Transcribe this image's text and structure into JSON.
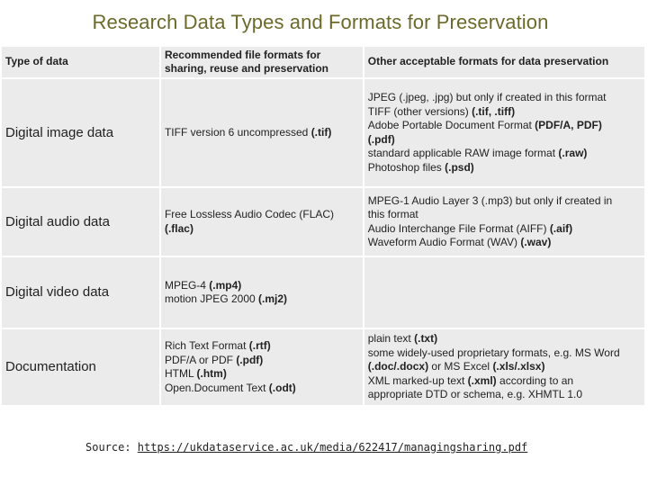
{
  "title": "Research Data Types and Formats for Preservation",
  "headers": {
    "col1": "Type of data",
    "col2": "Recommended file formats for sharing, reuse and preservation",
    "col3": "Other acceptable formats for data preservation"
  },
  "rows": [
    {
      "type": "Digital image data",
      "recommended": [
        [
          {
            "t": "TIFF version 6 uncompressed "
          },
          {
            "t": "(.tif)",
            "b": true
          }
        ]
      ],
      "other": [
        [
          {
            "t": "JPEG (.jpeg, .jpg) but only if created in this format"
          }
        ],
        [
          {
            "t": "TIFF (other versions) "
          },
          {
            "t": "(.tif, .tiff)",
            "b": true
          }
        ],
        [
          {
            "t": "Adobe Portable Document Format "
          },
          {
            "t": "(PDF/A, PDF)",
            "b": true
          }
        ],
        [
          {
            "t": "(.pdf)",
            "b": true
          }
        ],
        [
          {
            "t": "standard applicable RAW image format "
          },
          {
            "t": "(.raw)",
            "b": true
          }
        ],
        [
          {
            "t": "Photoshop files "
          },
          {
            "t": "(.psd)",
            "b": true
          }
        ]
      ]
    },
    {
      "type": "Digital audio data",
      "recommended": [
        [
          {
            "t": "Free Lossless Audio Codec (FLAC)"
          }
        ],
        [
          {
            "t": "(.flac)",
            "b": true
          }
        ]
      ],
      "other": [
        [
          {
            "t": "MPEG-1 Audio Layer 3 (.mp3) but only if created in"
          }
        ],
        [
          {
            "t": "this format"
          }
        ],
        [
          {
            "t": "Audio Interchange File Format (AIFF) "
          },
          {
            "t": "(.aif)",
            "b": true
          }
        ],
        [
          {
            "t": "Waveform Audio Format (WAV) "
          },
          {
            "t": "(.wav)",
            "b": true
          }
        ]
      ]
    },
    {
      "type": "Digital video data",
      "recommended": [
        [
          {
            "t": "MPEG-4 "
          },
          {
            "t": "(.mp4)",
            "b": true
          }
        ],
        [
          {
            "t": "motion JPEG 2000 "
          },
          {
            "t": "(.mj2)",
            "b": true
          }
        ]
      ],
      "other": []
    },
    {
      "type": "Documentation",
      "recommended": [
        [
          {
            "t": "Rich Text Format "
          },
          {
            "t": "(.rtf)",
            "b": true
          }
        ],
        [
          {
            "t": "PDF/A or PDF "
          },
          {
            "t": "(.pdf)",
            "b": true
          }
        ],
        [
          {
            "t": "HTML "
          },
          {
            "t": "(.htm)",
            "b": true
          }
        ],
        [
          {
            "t": "Open.Document Text "
          },
          {
            "t": "(.odt)",
            "b": true
          }
        ]
      ],
      "other": [
        [
          {
            "t": "plain text "
          },
          {
            "t": "(.txt)",
            "b": true
          }
        ],
        [
          {
            "t": "some widely-used proprietary formats, e.g. MS Word"
          }
        ],
        [
          {
            "t": "(.doc/.docx)",
            "b": true
          },
          {
            "t": " or MS Excel "
          },
          {
            "t": "(.xls/.xlsx)",
            "b": true
          }
        ],
        [
          {
            "t": "XML marked-up text "
          },
          {
            "t": "(.xml)",
            "b": true
          },
          {
            "t": " according to an"
          }
        ],
        [
          {
            "t": "appropriate DTD or schema, e.g. XHMTL 1.0"
          }
        ]
      ]
    }
  ],
  "source": {
    "label": "Source: ",
    "url": "https://ukdataservice.ac.uk/media/622417/managingsharing.pdf"
  }
}
